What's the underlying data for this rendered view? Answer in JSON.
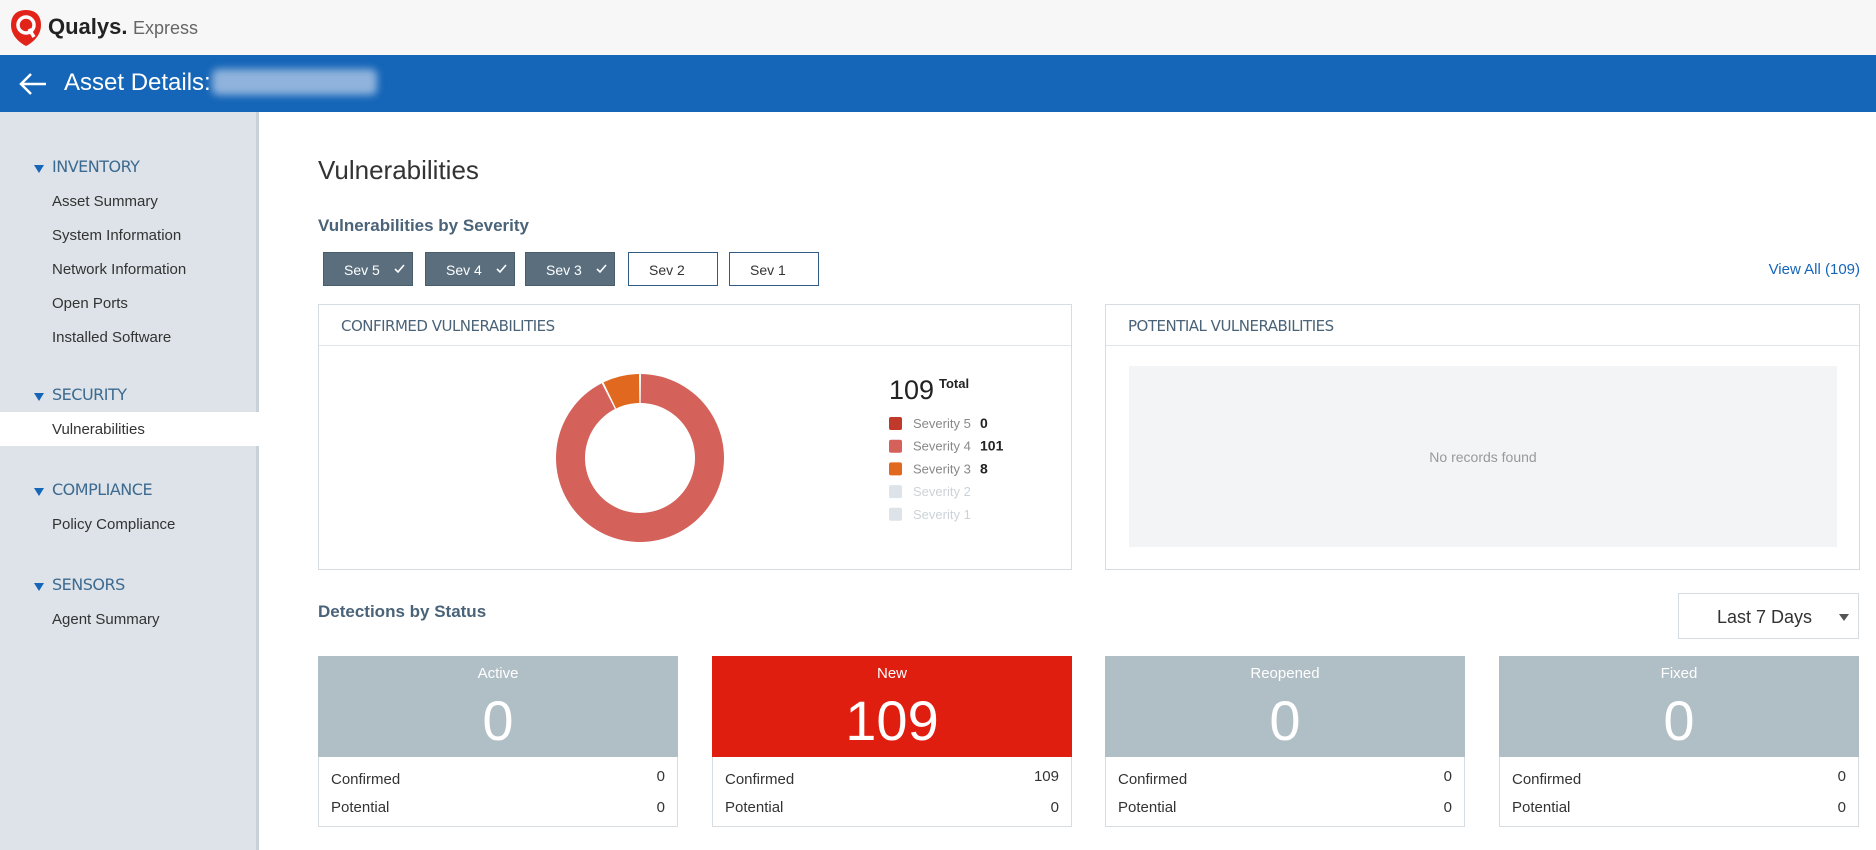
{
  "header": {
    "brand": "Qualys.",
    "product": "Express"
  },
  "titlebar": {
    "title": "Asset Details:"
  },
  "sidebar": {
    "sections": [
      {
        "label": "INVENTORY",
        "items": [
          "Asset Summary",
          "System Information",
          "Network Information",
          "Open Ports",
          "Installed Software"
        ]
      },
      {
        "label": "SECURITY",
        "items": [
          "Vulnerabilities"
        ],
        "active_item": 0
      },
      {
        "label": "COMPLIANCE",
        "items": [
          "Policy Compliance"
        ]
      },
      {
        "label": "SENSORS",
        "items": [
          "Agent Summary"
        ]
      }
    ]
  },
  "page": {
    "title": "Vulnerabilities",
    "severity_heading": "Vulnerabilities by Severity",
    "filters": [
      {
        "label": "Sev 5",
        "checked": true
      },
      {
        "label": "Sev 4",
        "checked": true
      },
      {
        "label": "Sev 3",
        "checked": true
      },
      {
        "label": "Sev 2",
        "checked": false
      },
      {
        "label": "Sev 1",
        "checked": false
      }
    ],
    "view_all": "View All (109)"
  },
  "confirmed": {
    "title": "CONFIRMED VULNERABILITIES",
    "chart": {
      "type": "donut",
      "total": 109,
      "total_label": "Total",
      "series": [
        {
          "name": "Severity 5",
          "value": 0,
          "color": "#c0392b"
        },
        {
          "name": "Severity 4",
          "value": 101,
          "color": "#d4615a"
        },
        {
          "name": "Severity 3",
          "value": 8,
          "color": "#e0691f"
        },
        {
          "name": "Severity 2",
          "value": null,
          "color": "#dde3e8"
        },
        {
          "name": "Severity 1",
          "value": null,
          "color": "#dde3e8"
        }
      ]
    }
  },
  "potential": {
    "title": "POTENTIAL VULNERABILITIES",
    "empty": "No records found"
  },
  "detections": {
    "title": "Detections by Status",
    "range": "Last 7 Days",
    "cards": [
      {
        "label": "Active",
        "value": 0,
        "color": "#b0bec5",
        "rows": [
          {
            "label": "Confirmed",
            "value": 0
          },
          {
            "label": "Potential",
            "value": 0
          }
        ]
      },
      {
        "label": "New",
        "value": 109,
        "color": "#e01e10",
        "rows": [
          {
            "label": "Confirmed",
            "value": 109
          },
          {
            "label": "Potential",
            "value": 0
          }
        ]
      },
      {
        "label": "Reopened",
        "value": 0,
        "color": "#b0bec5",
        "rows": [
          {
            "label": "Confirmed",
            "value": 0
          },
          {
            "label": "Potential",
            "value": 0
          }
        ]
      },
      {
        "label": "Fixed",
        "value": 0,
        "color": "#b0bec5",
        "rows": [
          {
            "label": "Confirmed",
            "value": 0
          },
          {
            "label": "Potential",
            "value": 0
          }
        ]
      }
    ]
  }
}
